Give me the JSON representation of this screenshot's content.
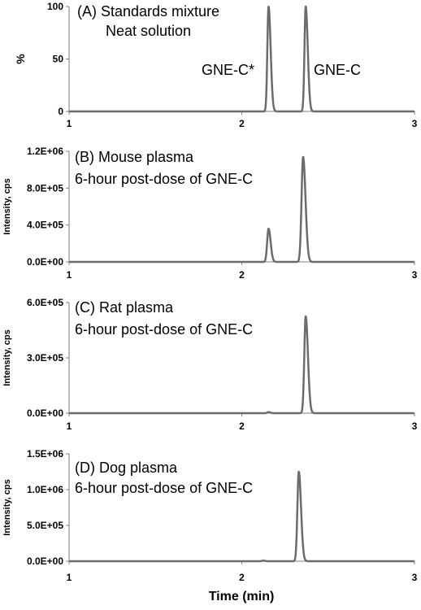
{
  "x_axis_title": "Time (min)",
  "chart_data": [
    {
      "type": "line",
      "title_lines": [
        "(A) Standards mixture",
        "Neat solution"
      ],
      "ylabel": "%",
      "xlim": [
        1,
        3
      ],
      "ylim": [
        0,
        100
      ],
      "yticks": [
        "0",
        "50",
        "100"
      ],
      "xticks": [
        "1",
        "2",
        "3"
      ],
      "peak_labels": [
        "GNE-C*",
        "GNE-C"
      ],
      "peaks": [
        {
          "label": "GNE-C*",
          "rt": 2.155,
          "height": 100,
          "sigma": 0.007,
          "tail": 0.012
        },
        {
          "label": "GNE-C",
          "rt": 2.37,
          "height": 100,
          "sigma": 0.007,
          "tail": 0.012
        }
      ]
    },
    {
      "type": "line",
      "title_lines": [
        "(B) Mouse plasma",
        "6-hour post-dose of GNE-C"
      ],
      "ylabel": "Intensity, cps",
      "xlim": [
        1,
        3
      ],
      "ylim": [
        0,
        1200000
      ],
      "yticks": [
        "0.0E+00",
        "4.0E+05",
        "8.0E+05",
        "1.2E+06"
      ],
      "xticks": [
        "1",
        "2",
        "3"
      ],
      "peaks": [
        {
          "label": "GNE-C*",
          "rt": 2.155,
          "height": 360000,
          "sigma": 0.008,
          "tail": 0.012
        },
        {
          "label": "GNE-C",
          "rt": 2.355,
          "height": 1140000,
          "sigma": 0.009,
          "tail": 0.014
        }
      ]
    },
    {
      "type": "line",
      "title_lines": [
        "(C) Rat plasma",
        "6-hour post-dose of GNE-C"
      ],
      "ylabel": "Intensity, cps",
      "xlim": [
        1,
        3
      ],
      "ylim": [
        0,
        600000
      ],
      "yticks": [
        "0.0E+00",
        "3.0E+05",
        "6.0E+05"
      ],
      "xticks": [
        "1",
        "2",
        "3"
      ],
      "peaks": [
        {
          "label": "GNE-C*",
          "rt": 2.155,
          "height": 6000,
          "sigma": 0.008,
          "tail": 0.01
        },
        {
          "label": "GNE-C",
          "rt": 2.37,
          "height": 525000,
          "sigma": 0.008,
          "tail": 0.013
        }
      ]
    },
    {
      "type": "line",
      "title_lines": [
        "(D) Dog plasma",
        "6-hour post-dose of GNE-C"
      ],
      "ylabel": "Intensity, cps",
      "xlim": [
        1,
        3
      ],
      "ylim": [
        0,
        1500000
      ],
      "yticks": [
        "0.0E+00",
        "5.0E+05",
        "1.0E+06",
        "1.5E+06"
      ],
      "xticks": [
        "1",
        "2",
        "3"
      ],
      "peaks": [
        {
          "label": "GNE-C*",
          "rt": 2.125,
          "height": 8000,
          "sigma": 0.008,
          "tail": 0.01
        },
        {
          "label": "GNE-C",
          "rt": 2.33,
          "height": 1250000,
          "sigma": 0.008,
          "tail": 0.013
        }
      ]
    }
  ]
}
